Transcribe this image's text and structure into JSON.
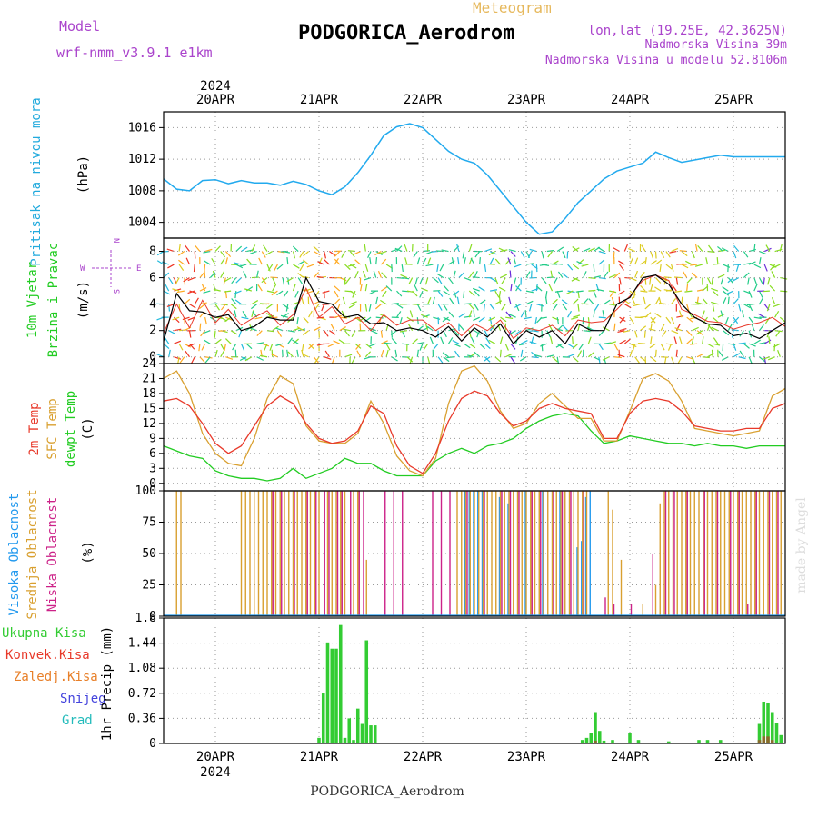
{
  "header": {
    "model_label": "Model",
    "model_value": "wrf-nmm_v3.9.1 e1km",
    "meteogram_label": "Meteogram",
    "station": "PODGORICA_Aerodrom",
    "lonlat": "lon,lat (19.25E, 42.3625N)",
    "elevation": "Nadmorska Visina 39m",
    "model_elevation": "Nadmorska Visina u modelu 52.8106m",
    "year": "2024",
    "footer_station": "PODGORICA_Aerodrom",
    "watermark": "made by Angel"
  },
  "colors": {
    "pressure": "#22aaee",
    "mslp_label": "#22aadd",
    "wind_label": "#22cc22",
    "wind_speed": "#000000",
    "gust": "#e8392a",
    "t2m": "#e8392a",
    "sfc": "#d9a030",
    "dewpt": "#22cc22",
    "cloud_high": "#2299ee",
    "cloud_mid": "#d9a030",
    "cloud_low": "#cc2288",
    "precip_total": "#33cc33",
    "precip_conv": "#e8392a",
    "precip_frozen": "#e8802a",
    "precip_snow": "#4444dd",
    "precip_graupel": "#22bbbb",
    "compass": "#aa44cc"
  },
  "chart_data": [
    {
      "type": "line",
      "name": "pressure",
      "ylabel_left": "Pritisak na nivou mora",
      "ylabel_unit": "(hPa)",
      "x_range": [
        0,
        144
      ],
      "ylim": [
        1002,
        1018
      ],
      "yticks": [
        1004,
        1008,
        1012,
        1016
      ],
      "grid": true,
      "x": [
        0,
        3,
        6,
        9,
        12,
        15,
        18,
        21,
        24,
        27,
        30,
        33,
        36,
        39,
        42,
        45,
        48,
        51,
        54,
        57,
        60,
        63,
        66,
        69,
        72,
        75,
        78,
        81,
        84,
        87,
        90,
        93,
        96,
        99,
        102,
        105,
        108,
        111,
        114,
        117,
        120,
        123,
        126,
        129,
        132,
        135,
        138,
        141,
        144
      ],
      "values": [
        1009.5,
        1008.2,
        1008.0,
        1009.3,
        1009.4,
        1008.9,
        1009.3,
        1009.0,
        1009.0,
        1008.7,
        1009.2,
        1008.8,
        1008.0,
        1007.5,
        1008.5,
        1010.3,
        1012.5,
        1015.0,
        1016.1,
        1016.5,
        1016.0,
        1014.5,
        1013.0,
        1012.0,
        1011.5,
        1010.0,
        1008.0,
        1006.0,
        1004.0,
        1002.5,
        1002.8,
        1004.5,
        1006.5,
        1008.0,
        1009.5,
        1010.5,
        1011.0,
        1011.5,
        1012.9,
        1012.2,
        1011.6,
        1011.9,
        1012.2,
        1012.5,
        1012.3,
        1012.3,
        1012.3,
        1012.3,
        1012.3
      ],
      "x_visible_max": 144
    },
    {
      "type": "line",
      "name": "wind",
      "ylabel_left_1": "10m Vjetar",
      "ylabel_left_2": "Brzina i Pravac",
      "ylabel_unit": "(m/s)",
      "compass_labels": [
        "W",
        "E",
        "N",
        "S"
      ],
      "ylim": [
        -0.5,
        9
      ],
      "yticks": [
        0,
        2,
        4,
        6,
        8
      ],
      "grid": true,
      "x": [
        0,
        3,
        6,
        9,
        12,
        15,
        18,
        21,
        24,
        27,
        30,
        33,
        36,
        39,
        42,
        45,
        48,
        51,
        54,
        57,
        60,
        63,
        66,
        69,
        72,
        75,
        78,
        81,
        84,
        87,
        90,
        93,
        96,
        99,
        102,
        105,
        108,
        111,
        114,
        117,
        120,
        123,
        126,
        129,
        132,
        135,
        138,
        141,
        144
      ],
      "speed": [
        1.2,
        4.8,
        3.5,
        3.4,
        3.0,
        3.2,
        2.0,
        2.3,
        3.0,
        2.8,
        2.8,
        6.0,
        4.2,
        4.0,
        3.0,
        3.2,
        2.5,
        2.6,
        2.0,
        2.2,
        2.0,
        1.5,
        2.3,
        1.2,
        2.2,
        1.5,
        2.5,
        1.0,
        2.0,
        1.5,
        2.0,
        1.0,
        2.5,
        2.0,
        2.0,
        4.0,
        4.5,
        6.0,
        6.2,
        5.5,
        4.0,
        3.0,
        2.5,
        2.4,
        1.6,
        1.8,
        1.4,
        2.0,
        2.6
      ],
      "gust": [
        1.8,
        4.0,
        2.2,
        4.3,
        2.6,
        3.6,
        2.4,
        3.0,
        3.5,
        2.4,
        3.2,
        5.2,
        3.0,
        3.8,
        2.5,
        3.0,
        2.0,
        3.2,
        2.4,
        2.8,
        2.8,
        2.0,
        2.6,
        1.6,
        2.5,
        2.0,
        2.8,
        1.4,
        2.2,
        2.0,
        2.4,
        1.6,
        2.8,
        2.6,
        2.7,
        3.6,
        4.6,
        5.8,
        6.2,
        5.8,
        3.6,
        3.2,
        2.7,
        2.6,
        2.1,
        2.4,
        2.6,
        3.0,
        2.3
      ]
    },
    {
      "type": "line",
      "name": "temperature",
      "ylabel_left_1": "2m Temp",
      "ylabel_left_2": "SFC Temp",
      "ylabel_left_3": "dewpt Temp",
      "ylabel_unit": "(C)",
      "ylim": [
        -1.5,
        24
      ],
      "yticks": [
        0,
        3,
        6,
        9,
        12,
        15,
        18,
        21,
        24
      ],
      "grid": true,
      "x": [
        0,
        3,
        6,
        9,
        12,
        15,
        18,
        21,
        24,
        27,
        30,
        33,
        36,
        39,
        42,
        45,
        48,
        51,
        54,
        57,
        60,
        63,
        66,
        69,
        72,
        75,
        78,
        81,
        84,
        87,
        90,
        93,
        96,
        99,
        102,
        105,
        108,
        111,
        114,
        117,
        120,
        123,
        126,
        129,
        132,
        135,
        138,
        141,
        144
      ],
      "t2m": [
        16.5,
        17.0,
        15.5,
        12.0,
        8.0,
        6.0,
        7.5,
        11.5,
        15.5,
        17.5,
        16.0,
        12.0,
        9.0,
        8.0,
        8.5,
        10.5,
        15.5,
        14.0,
        7.5,
        3.5,
        2.0,
        6.0,
        12.5,
        17.0,
        18.5,
        17.5,
        14.0,
        11.5,
        12.5,
        15.0,
        16.0,
        15.0,
        14.5,
        14.0,
        9.0,
        9.0,
        14.0,
        16.5,
        17.0,
        16.5,
        14.5,
        11.5,
        11.0,
        10.5,
        10.5,
        11.0,
        11.0,
        15.0,
        16.0
      ],
      "sfc": [
        21.0,
        22.5,
        18.0,
        10.0,
        6.0,
        4.0,
        3.5,
        9.0,
        17.0,
        21.5,
        20.0,
        11.5,
        8.5,
        8.0,
        8.0,
        10.0,
        16.5,
        12.0,
        5.5,
        2.5,
        1.5,
        5.0,
        16.0,
        22.5,
        23.5,
        20.5,
        14.5,
        11.0,
        12.0,
        16.0,
        18.0,
        15.5,
        13.0,
        13.0,
        8.5,
        8.5,
        14.5,
        21.0,
        22.0,
        20.5,
        16.5,
        11.0,
        10.5,
        10.0,
        9.5,
        10.0,
        10.5,
        17.5,
        19.0
      ],
      "dewpt": [
        7.5,
        6.5,
        5.5,
        5.0,
        2.5,
        1.5,
        1.0,
        1.0,
        0.5,
        1.0,
        3.0,
        1.0,
        2.0,
        3.0,
        5.0,
        4.0,
        4.0,
        2.5,
        1.5,
        1.5,
        1.5,
        4.5,
        6.0,
        7.0,
        6.0,
        7.5,
        8.0,
        9.0,
        11.0,
        12.5,
        13.5,
        14.0,
        13.5,
        10.5,
        8.0,
        8.5,
        9.5,
        9.0,
        8.5,
        8.0,
        8.0,
        7.5,
        8.0,
        7.5,
        7.5,
        7.0,
        7.5,
        7.5,
        7.5
      ]
    },
    {
      "type": "bar",
      "name": "cloud",
      "ylabel_left_1": "Visoka Oblacnost",
      "ylabel_left_2": "Srednja Oblacnost",
      "ylabel_left_3": "Niska Oblacnost",
      "ylabel_unit": "(%)",
      "ylim": [
        0,
        100
      ],
      "yticks": [
        0,
        25,
        50,
        75,
        100
      ],
      "grid": true,
      "note": "values per hour",
      "mid_hours": [
        3,
        4,
        18,
        19,
        20,
        21,
        22,
        23,
        24,
        25,
        26,
        27,
        28,
        29,
        30,
        31,
        32,
        33,
        34,
        35,
        36,
        38,
        39,
        40,
        41,
        42,
        44,
        45,
        47,
        68,
        69,
        70,
        71,
        72,
        73,
        74,
        75,
        76,
        77,
        78,
        79,
        80,
        81,
        82,
        83,
        84,
        85,
        86,
        87,
        88,
        89,
        90,
        91,
        92,
        93,
        94,
        95,
        96,
        97,
        98,
        103,
        104,
        106,
        111,
        114,
        115,
        116,
        117,
        118,
        119,
        120,
        121,
        122,
        123,
        124,
        125,
        126,
        127,
        128,
        129,
        130,
        131,
        132,
        133,
        134,
        135,
        136,
        137,
        138,
        139,
        140,
        141,
        142,
        143
      ],
      "mid_values": [
        100,
        100,
        100,
        100,
        100,
        100,
        100,
        100,
        100,
        100,
        100,
        100,
        100,
        100,
        100,
        100,
        100,
        100,
        100,
        100,
        100,
        100,
        100,
        100,
        100,
        100,
        100,
        100,
        45,
        100,
        100,
        100,
        100,
        100,
        100,
        100,
        100,
        100,
        100,
        100,
        100,
        100,
        100,
        100,
        100,
        100,
        100,
        100,
        100,
        100,
        100,
        100,
        100,
        100,
        100,
        100,
        100,
        100,
        100,
        100,
        100,
        85,
        45,
        10,
        25,
        90,
        100,
        100,
        100,
        100,
        100,
        100,
        100,
        100,
        100,
        100,
        100,
        100,
        100,
        100,
        100,
        100,
        100,
        100,
        100,
        100,
        100,
        100,
        100,
        100,
        100,
        100,
        100,
        100
      ],
      "low_hours": [
        25,
        27,
        30,
        33,
        35,
        37,
        38,
        40,
        41,
        43,
        45,
        46,
        51,
        53,
        55,
        62,
        64,
        66,
        70,
        74,
        78,
        80,
        82,
        85,
        87,
        90,
        92,
        94,
        97,
        102,
        104,
        108,
        113,
        116,
        118,
        121,
        125,
        128,
        131,
        133,
        135,
        137,
        140,
        142
      ],
      "low_values": [
        100,
        100,
        100,
        100,
        100,
        100,
        100,
        100,
        100,
        100,
        100,
        100,
        100,
        100,
        100,
        100,
        100,
        100,
        100,
        100,
        100,
        100,
        100,
        100,
        100,
        100,
        100,
        100,
        100,
        15,
        10,
        10,
        50,
        100,
        100,
        100,
        100,
        100,
        100,
        100,
        10,
        100,
        100,
        100
      ],
      "high_hours": [
        70,
        71,
        72,
        73,
        74,
        78,
        80,
        84,
        88,
        92,
        93,
        96,
        97,
        98,
        99
      ],
      "high_values": [
        100,
        100,
        100,
        100,
        100,
        95,
        90,
        100,
        100,
        100,
        100,
        55,
        60,
        95,
        100
      ]
    },
    {
      "type": "bar",
      "name": "precip",
      "legend": [
        "Ukupna Kisa",
        "Konvek.Kisa",
        "Zaledj.Kisa",
        "Snijeg",
        "Grad"
      ],
      "ylabel_unit": "1hr Precip (mm)",
      "ylim": [
        0,
        1.8
      ],
      "yticks": [
        0,
        0.36,
        0.72,
        1.08,
        1.44,
        1.8
      ],
      "ytick_labels": [
        "0",
        "0.36",
        "0.72",
        "1.08",
        "1.44",
        "1.8"
      ],
      "grid": true,
      "hours": [
        36,
        37,
        38,
        39,
        40,
        41,
        42,
        43,
        44,
        45,
        46,
        47,
        48,
        49,
        97,
        98,
        99,
        100,
        101,
        102,
        104,
        108,
        110,
        117,
        124,
        126,
        129,
        138,
        139,
        140,
        141,
        142,
        143
      ],
      "total": [
        0.08,
        0.72,
        1.45,
        1.36,
        1.36,
        1.7,
        0.08,
        0.36,
        0.05,
        0.5,
        0.28,
        1.48,
        0.26,
        0.26,
        0.05,
        0.08,
        0.15,
        0.45,
        0.18,
        0.04,
        0.05,
        0.15,
        0.05,
        0.03,
        0.05,
        0.05,
        0.05,
        0.28,
        0.6,
        0.58,
        0.45,
        0.3,
        0.12
      ],
      "convective": [
        0,
        0,
        0,
        0,
        0,
        0,
        0,
        0,
        0,
        0,
        0,
        0,
        0,
        0,
        0,
        0,
        0,
        0.04,
        0,
        0,
        0,
        0,
        0,
        0,
        0,
        0,
        0,
        0.05,
        0.1,
        0.1,
        0.05,
        0,
        0
      ]
    }
  ],
  "x_axis": {
    "top_year": "2024",
    "bottom_year": "2024",
    "date_labels": [
      "20APR",
      "21APR",
      "22APR",
      "23APR",
      "24APR",
      "25APR"
    ],
    "date_hours": [
      12,
      36,
      60,
      84,
      108,
      132
    ],
    "x_min": 0,
    "x_max": 144
  }
}
